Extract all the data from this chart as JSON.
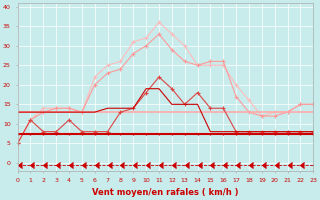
{
  "x": [
    0,
    1,
    2,
    3,
    4,
    5,
    6,
    7,
    8,
    9,
    10,
    11,
    12,
    13,
    14,
    15,
    16,
    17,
    18,
    19,
    20,
    21,
    22,
    23
  ],
  "series": [
    {
      "label": "light_pink_outer",
      "color": "#ffbbbb",
      "linewidth": 0.8,
      "marker": "+",
      "markersize": 3,
      "linestyle": "-",
      "data": [
        5,
        11,
        14,
        14,
        14,
        13,
        22,
        25,
        26,
        31,
        32,
        36,
        33,
        30,
        25,
        25,
        25,
        20,
        16,
        12,
        13,
        13,
        15,
        15
      ]
    },
    {
      "label": "medium_pink",
      "color": "#ff9999",
      "linewidth": 0.8,
      "marker": "+",
      "markersize": 3,
      "linestyle": "-",
      "data": [
        5,
        11,
        13,
        14,
        14,
        13,
        20,
        23,
        24,
        28,
        30,
        33,
        29,
        26,
        25,
        26,
        26,
        17,
        13,
        12,
        12,
        13,
        15,
        15
      ]
    },
    {
      "label": "med_pink_flat",
      "color": "#ffaaaa",
      "linewidth": 1.2,
      "marker": null,
      "markersize": 0,
      "linestyle": "-",
      "data": [
        13,
        13,
        13,
        13,
        13,
        13,
        13,
        13,
        13,
        13,
        13,
        13,
        13,
        13,
        13,
        13,
        13,
        13,
        13,
        13,
        13,
        13,
        13,
        13
      ]
    },
    {
      "label": "med_red_ramp",
      "color": "#dd4444",
      "linewidth": 0.8,
      "marker": "+",
      "markersize": 3,
      "linestyle": "-",
      "data": [
        5,
        11,
        8,
        8,
        11,
        8,
        8,
        8,
        13,
        14,
        18,
        22,
        19,
        15,
        18,
        14,
        14,
        8,
        8,
        8,
        8,
        8,
        8,
        8
      ]
    },
    {
      "label": "dark_red_ramp2",
      "color": "#cc0000",
      "linewidth": 0.8,
      "marker": null,
      "markersize": 0,
      "linestyle": "-",
      "data": [
        13,
        13,
        13,
        13,
        13,
        13,
        13,
        14,
        14,
        14,
        19,
        19,
        15,
        15,
        15,
        8,
        8,
        8,
        8,
        8,
        8,
        8,
        8,
        8
      ]
    },
    {
      "label": "dark_red_flat",
      "color": "#cc0000",
      "linewidth": 1.5,
      "marker": "+",
      "markersize": 2,
      "linestyle": "-",
      "data": [
        7.5,
        7.5,
        7.5,
        7.5,
        7.5,
        7.5,
        7.5,
        7.5,
        7.5,
        7.5,
        7.5,
        7.5,
        7.5,
        7.5,
        7.5,
        7.5,
        7.5,
        7.5,
        7.5,
        7.5,
        7.5,
        7.5,
        7.5,
        7.5
      ]
    },
    {
      "label": "arrow_line",
      "color": "#cc0000",
      "linewidth": 0.6,
      "marker": 4,
      "markersize": 4,
      "linestyle": "--",
      "data": [
        -0.5,
        -0.5,
        -0.5,
        -0.5,
        -0.5,
        -0.5,
        -0.5,
        -0.5,
        -0.5,
        -0.5,
        -0.5,
        -0.5,
        -0.5,
        -0.5,
        -0.5,
        -0.5,
        -0.5,
        -0.5,
        -0.5,
        -0.5,
        -0.5,
        -0.5,
        -0.5,
        -0.5
      ]
    }
  ],
  "xlim": [
    0,
    23
  ],
  "ylim": [
    -2,
    41
  ],
  "yticks": [
    0,
    5,
    10,
    15,
    20,
    25,
    30,
    35,
    40
  ],
  "xticks": [
    0,
    1,
    2,
    3,
    4,
    5,
    6,
    7,
    8,
    9,
    10,
    11,
    12,
    13,
    14,
    15,
    16,
    17,
    18,
    19,
    20,
    21,
    22,
    23
  ],
  "xlabel": "Vent moyen/en rafales ( km/h )",
  "background_color": "#c8ecec",
  "grid_color": "#ffffff",
  "label_color": "#cc0000",
  "tick_color": "#cc0000"
}
